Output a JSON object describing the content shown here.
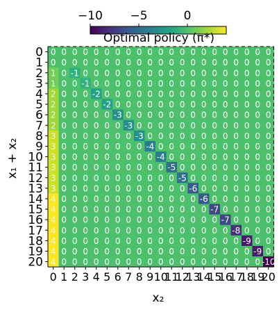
{
  "chart_data": {
    "type": "heatmap",
    "title": "Optimal policy (π*)",
    "xlabel": "x₂",
    "ylabel": "x₁ + x₂",
    "x_categories": [
      "0",
      "1",
      "2",
      "3",
      "4",
      "5",
      "6",
      "7",
      "8",
      "9",
      "10",
      "11",
      "12",
      "13",
      "14",
      "15",
      "16",
      "17",
      "18",
      "19",
      "20"
    ],
    "y_categories": [
      "0",
      "1",
      "2",
      "3",
      "4",
      "5",
      "6",
      "7",
      "8",
      "9",
      "10",
      "11",
      "12",
      "13",
      "14",
      "15",
      "16",
      "17",
      "18",
      "19",
      "20"
    ],
    "colorbar": {
      "colormap": "viridis",
      "vmin": -10,
      "vmax": 4,
      "ticks": [
        -10,
        -5,
        0
      ],
      "location": "top"
    },
    "first_column_values": [
      0,
      0,
      1,
      1,
      2,
      2,
      2,
      2,
      3,
      3,
      3,
      3,
      3,
      3,
      4,
      4,
      4,
      4,
      4,
      4,
      4
    ],
    "diagonal_values": [
      {
        "row": 2,
        "col": 2,
        "value": -1
      },
      {
        "row": 3,
        "col": 3,
        "value": -1
      },
      {
        "row": 4,
        "col": 4,
        "value": -2
      },
      {
        "row": 5,
        "col": 5,
        "value": -2
      },
      {
        "row": 6,
        "col": 6,
        "value": -3
      },
      {
        "row": 7,
        "col": 7,
        "value": -3
      },
      {
        "row": 8,
        "col": 8,
        "value": -3
      },
      {
        "row": 9,
        "col": 9,
        "value": -4
      },
      {
        "row": 10,
        "col": 10,
        "value": -4
      },
      {
        "row": 11,
        "col": 11,
        "value": -5
      },
      {
        "row": 12,
        "col": 12,
        "value": -5
      },
      {
        "row": 13,
        "col": 13,
        "value": -6
      },
      {
        "row": 14,
        "col": 14,
        "value": -6
      },
      {
        "row": 15,
        "col": 15,
        "value": -7
      },
      {
        "row": 16,
        "col": 16,
        "value": -7
      },
      {
        "row": 17,
        "col": 17,
        "value": -8
      },
      {
        "row": 18,
        "col": 18,
        "value": -9
      },
      {
        "row": 19,
        "col": 19,
        "value": -9
      },
      {
        "row": 20,
        "col": 20,
        "value": -10
      }
    ],
    "other_cells_value": 0
  }
}
